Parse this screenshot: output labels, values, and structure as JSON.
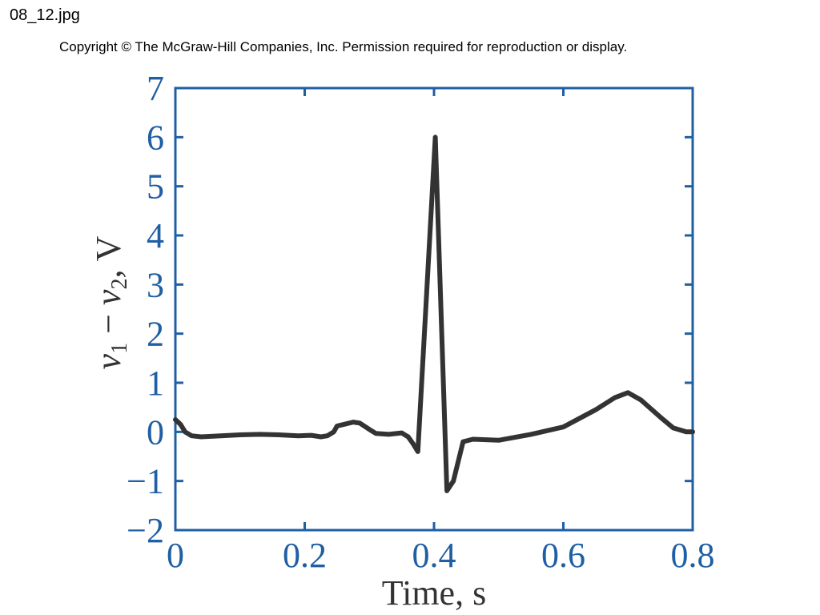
{
  "header": {
    "file_name": "08_12.jpg",
    "copyright": "Copyright © The McGraw-Hill Companies, Inc. Permission required for reproduction or display."
  },
  "chart_data": {
    "type": "line",
    "title": "",
    "xlabel": "Time, s",
    "ylabel": "v1 − v2, V",
    "ylabel_parts": {
      "var1": "v",
      "sub1": "1",
      "minus": " − ",
      "var2": "v",
      "sub2": "2",
      "unit": ", V"
    },
    "xlim": [
      0,
      0.8
    ],
    "ylim": [
      -2,
      7
    ],
    "x_ticks": [
      0,
      0.2,
      0.4,
      0.6,
      0.8
    ],
    "x_tick_labels": [
      "0",
      "0.2",
      "0.4",
      "0.6",
      "0.8"
    ],
    "y_ticks": [
      -2,
      -1,
      0,
      1,
      2,
      3,
      4,
      5,
      6,
      7
    ],
    "y_tick_labels": [
      "−2",
      "−1",
      "0",
      "1",
      "2",
      "3",
      "4",
      "5",
      "6",
      "7"
    ],
    "grid": false,
    "colors": {
      "axis": "#1f5fa3",
      "line": "#333333"
    },
    "series": [
      {
        "x": [
          0,
          0.008,
          0.015,
          0.025,
          0.04,
          0.07,
          0.1,
          0.13,
          0.16,
          0.19,
          0.21,
          0.225,
          0.235,
          0.245,
          0.25,
          0.26,
          0.275,
          0.285,
          0.3,
          0.31,
          0.33,
          0.35,
          0.36,
          0.368,
          0.375,
          0.402,
          0.42,
          0.43,
          0.445,
          0.46,
          0.5,
          0.55,
          0.6,
          0.65,
          0.68,
          0.7,
          0.72,
          0.75,
          0.77,
          0.79,
          0.8
        ],
        "y": [
          0.25,
          0.15,
          0.0,
          -0.08,
          -0.1,
          -0.08,
          -0.06,
          -0.05,
          -0.06,
          -0.08,
          -0.07,
          -0.1,
          -0.08,
          0.0,
          0.12,
          0.15,
          0.2,
          0.18,
          0.05,
          -0.03,
          -0.05,
          -0.02,
          -0.1,
          -0.25,
          -0.4,
          6.0,
          -1.2,
          -1.0,
          -0.2,
          -0.15,
          -0.17,
          -0.05,
          0.1,
          0.45,
          0.7,
          0.8,
          0.65,
          0.3,
          0.08,
          0.0,
          0.0
        ]
      }
    ]
  }
}
